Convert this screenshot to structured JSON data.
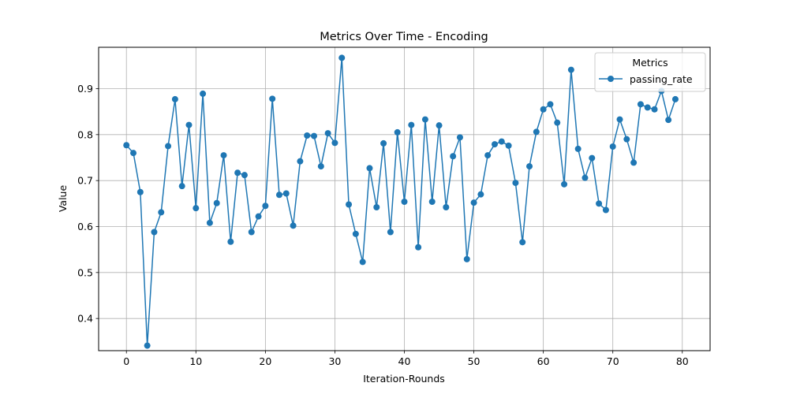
{
  "chart_data": {
    "type": "line",
    "title": "Metrics Over Time - Encoding",
    "xlabel": "Iteration-Rounds",
    "ylabel": "Value",
    "xlim": [
      -4,
      84
    ],
    "ylim": [
      0.33,
      0.99
    ],
    "xticks": [
      0,
      10,
      20,
      30,
      40,
      50,
      60,
      70,
      80
    ],
    "yticks": [
      0.4,
      0.5,
      0.6,
      0.7,
      0.8,
      0.9
    ],
    "grid": true,
    "legend": {
      "title": "Metrics",
      "position": "top-right"
    },
    "series": [
      {
        "name": "passing_rate",
        "color": "#1f77b4",
        "marker": "circle",
        "x": [
          0,
          1,
          2,
          3,
          4,
          5,
          6,
          7,
          8,
          9,
          10,
          11,
          12,
          13,
          14,
          15,
          16,
          17,
          18,
          19,
          20,
          21,
          22,
          23,
          24,
          25,
          26,
          27,
          28,
          29,
          30,
          31,
          32,
          33,
          34,
          35,
          36,
          37,
          38,
          39,
          40,
          41,
          42,
          43,
          44,
          45,
          46,
          47,
          48,
          49,
          50,
          51,
          52,
          53,
          54,
          55,
          56,
          57,
          58,
          59,
          60,
          61,
          62,
          63,
          64,
          65,
          66,
          67,
          68,
          69,
          70,
          71,
          72,
          73,
          74,
          75,
          76,
          77,
          78,
          79
        ],
        "values": [
          0.777,
          0.76,
          0.675,
          0.341,
          0.588,
          0.631,
          0.775,
          0.877,
          0.688,
          0.821,
          0.64,
          0.889,
          0.608,
          0.651,
          0.755,
          0.567,
          0.717,
          0.712,
          0.588,
          0.622,
          0.645,
          0.878,
          0.669,
          0.672,
          0.602,
          0.742,
          0.798,
          0.797,
          0.731,
          0.803,
          0.782,
          0.967,
          0.648,
          0.584,
          0.523,
          0.727,
          0.642,
          0.781,
          0.588,
          0.805,
          0.654,
          0.821,
          0.555,
          0.833,
          0.654,
          0.82,
          0.642,
          0.753,
          0.794,
          0.529,
          0.652,
          0.67,
          0.755,
          0.779,
          0.785,
          0.776,
          0.695,
          0.566,
          0.731,
          0.806,
          0.855,
          0.866,
          0.826,
          0.692,
          0.941,
          0.769,
          0.706,
          0.749,
          0.65,
          0.636,
          0.774,
          0.833,
          0.79,
          0.739,
          0.866,
          0.859,
          0.855,
          0.895,
          0.832,
          0.877
        ]
      }
    ]
  }
}
